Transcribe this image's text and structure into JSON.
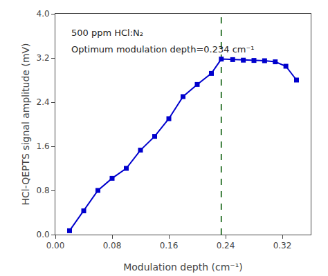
{
  "chart_data": {
    "type": "line",
    "x": [
      0.02,
      0.04,
      0.06,
      0.08,
      0.1,
      0.12,
      0.14,
      0.16,
      0.18,
      0.2,
      0.22,
      0.234,
      0.25,
      0.265,
      0.28,
      0.295,
      0.31,
      0.325,
      0.34
    ],
    "values": [
      0.07,
      0.43,
      0.8,
      1.02,
      1.2,
      1.53,
      1.78,
      2.1,
      2.5,
      2.72,
      2.92,
      3.18,
      3.17,
      3.16,
      3.155,
      3.15,
      3.13,
      3.05,
      2.8
    ],
    "color": "#0000CD",
    "marker": "square",
    "x_label": "Modulation depth (cm⁻¹)",
    "y_label": "HCl-QEPTS signal amplitude (mV)",
    "xlim": [
      0.0,
      0.36
    ],
    "ylim": [
      0.0,
      4.0
    ],
    "xticks": [
      {
        "value": 0,
        "label": "0.00"
      },
      0.08,
      0.16,
      0.24,
      0.32
    ],
    "yticks": [
      {
        "value": 0,
        "label": "0.0"
      },
      0.8,
      1.6,
      2.4,
      3.2,
      {
        "value": 4,
        "label": "4.0"
      }
    ],
    "grid": false,
    "vlines": [
      {
        "x": 0.234,
        "color": "#3a7d3a",
        "line_style": "dashed"
      }
    ],
    "annotations": [
      {
        "text": "500 ppm HCl:N₂",
        "x": 0.02,
        "y": 3.78
      },
      {
        "text": "Optimum modulation depth=0.234 cm⁻¹",
        "x": 0.02,
        "y": 3.48
      }
    ]
  }
}
